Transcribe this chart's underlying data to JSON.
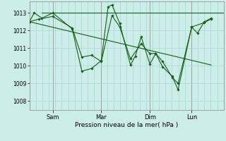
{
  "background_color": "#cceee8",
  "grid_color": "#aad4ce",
  "line_color": "#1a5c1a",
  "marker_color": "#1a5c1a",
  "ylabel_ticks": [
    1008,
    1009,
    1010,
    1011,
    1012,
    1013
  ],
  "ylim": [
    1007.5,
    1013.65
  ],
  "xlabel": "Pression niveau de la mer( hPa )",
  "day_labels": [
    "Sam",
    "Mar",
    "Dim",
    "Lun"
  ],
  "day_positions": [
    0.12,
    0.37,
    0.62,
    0.835
  ],
  "xlim": [
    0,
    1.0
  ],
  "series1_x": [
    0.0,
    0.025,
    0.065,
    0.12,
    0.22,
    0.27,
    0.32,
    0.37,
    0.405,
    0.425,
    0.465,
    0.52,
    0.545,
    0.575,
    0.62,
    0.65,
    0.685,
    0.735,
    0.765,
    0.835,
    0.865,
    0.9,
    0.935
  ],
  "series1_y": [
    1012.5,
    1013.0,
    1012.7,
    1013.0,
    1012.1,
    1009.7,
    1009.85,
    1010.3,
    1013.35,
    1013.45,
    1012.4,
    1010.05,
    1010.55,
    1011.65,
    1010.1,
    1010.7,
    1010.25,
    1009.35,
    1009.0,
    1012.2,
    1011.85,
    1012.5,
    1012.7
  ],
  "series2_x": [
    0.0,
    0.05,
    0.12,
    0.22,
    0.27,
    0.32,
    0.37,
    0.425,
    0.465,
    0.52,
    0.575,
    0.62,
    0.65,
    0.685,
    0.735,
    0.765,
    0.835,
    0.9,
    0.935
  ],
  "series2_y": [
    1012.5,
    1012.65,
    1012.8,
    1012.15,
    1010.5,
    1010.6,
    1010.25,
    1012.85,
    1012.2,
    1010.4,
    1011.25,
    1010.7,
    1010.7,
    1009.95,
    1009.4,
    1008.65,
    1012.2,
    1012.45,
    1012.65
  ],
  "series3_x": [
    0.065,
    0.12,
    1.0
  ],
  "series3_y": [
    1013.0,
    1013.0,
    1013.0
  ],
  "series4_x": [
    0.0,
    0.935
  ],
  "series4_y": [
    1012.5,
    1010.05
  ],
  "lw": 0.8,
  "ms": 1.8
}
